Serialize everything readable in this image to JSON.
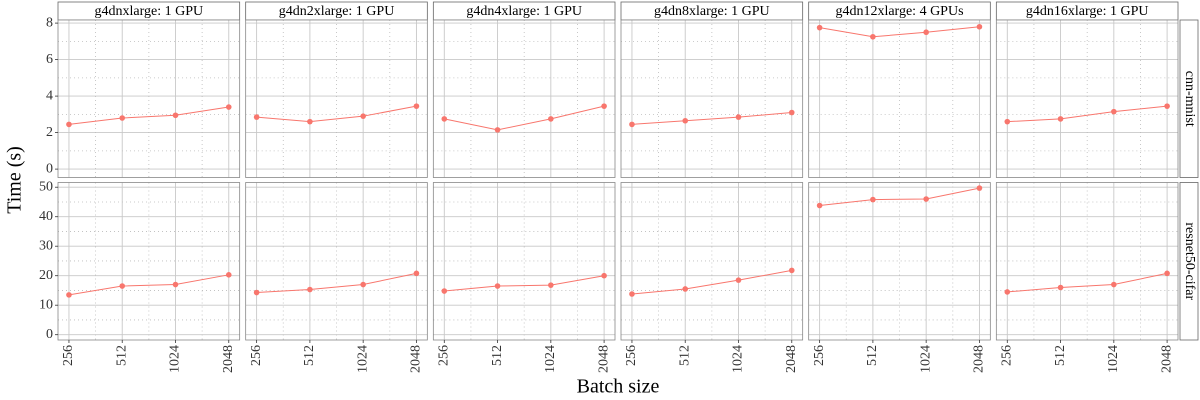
{
  "chart_data": {
    "type": "line",
    "x_label": "Batch size",
    "y_label": "Time (s)",
    "color": "#f8766d",
    "grid": true,
    "xlog": true,
    "x": [
      256,
      512,
      1024,
      2048
    ],
    "xlim": [
      222,
      2360
    ],
    "xticks": [
      256,
      512,
      1024,
      2048
    ],
    "columns": [
      "g4dnxlarge: 1 GPU",
      "g4dn2xlarge: 1 GPU",
      "g4dn4xlarge: 1 GPU",
      "g4dn8xlarge: 1 GPU",
      "g4dn12xlarge: 4 GPUs",
      "g4dn16xlarge: 1 GPU"
    ],
    "rows": [
      {
        "name": "cnn-mnist",
        "ylim": [
          -0.46,
          8.17
        ],
        "yticks": [
          0,
          2,
          4,
          6,
          8
        ],
        "values": [
          [
            2.45,
            2.8,
            2.95,
            3.4
          ],
          [
            2.85,
            2.6,
            2.9,
            3.45
          ],
          [
            2.75,
            2.15,
            2.75,
            3.45
          ],
          [
            2.45,
            2.65,
            2.85,
            3.1
          ],
          [
            7.75,
            7.25,
            7.5,
            7.8
          ],
          [
            2.6,
            2.75,
            3.15,
            3.45
          ]
        ]
      },
      {
        "name": "resnet50-cifar",
        "ylim": [
          -1.8,
          51.6
        ],
        "yticks": [
          0,
          10,
          20,
          30,
          40,
          50
        ],
        "values": [
          [
            13.5,
            16.5,
            17,
            20.3
          ],
          [
            14.3,
            15.3,
            17,
            20.8
          ],
          [
            14.8,
            16.5,
            16.8,
            20
          ],
          [
            13.8,
            15.5,
            18.5,
            21.8
          ],
          [
            43.8,
            45.8,
            46,
            49.7
          ],
          [
            14.5,
            16,
            17,
            20.8
          ]
        ]
      }
    ]
  }
}
